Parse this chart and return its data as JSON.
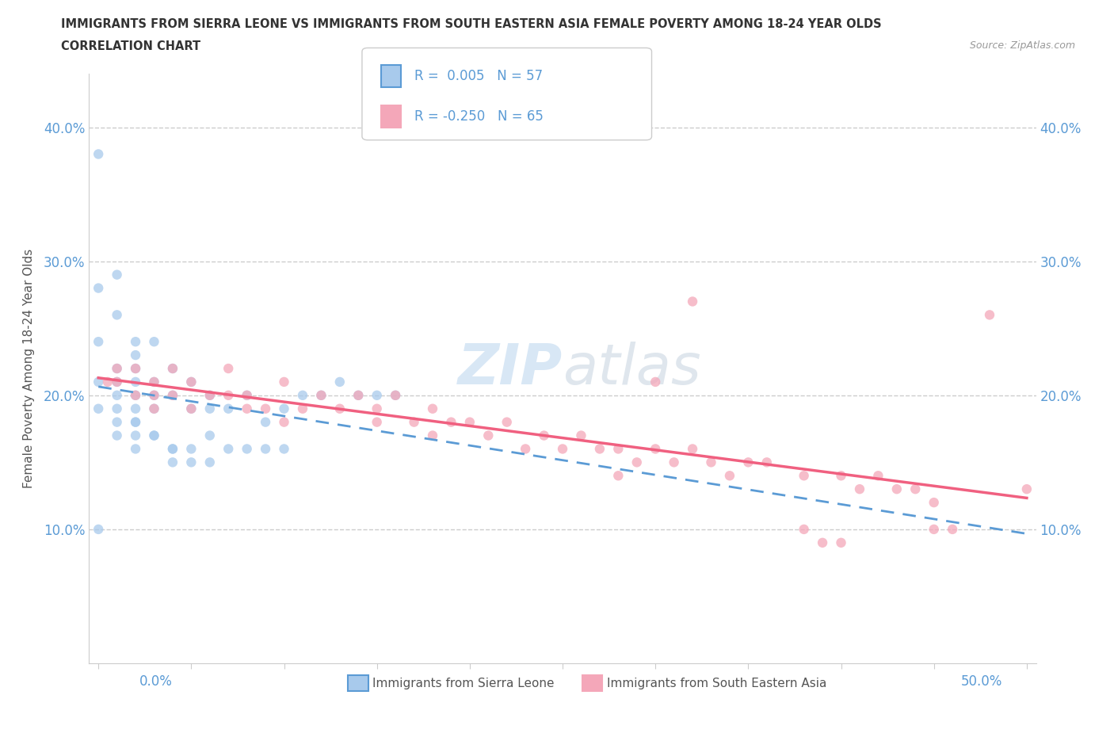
{
  "title_line1": "IMMIGRANTS FROM SIERRA LEONE VS IMMIGRANTS FROM SOUTH EASTERN ASIA FEMALE POVERTY AMONG 18-24 YEAR OLDS",
  "title_line2": "CORRELATION CHART",
  "source_text": "Source: ZipAtlas.com",
  "ylabel": "Female Poverty Among 18-24 Year Olds",
  "xlim": [
    0.0,
    0.5
  ],
  "ylim": [
    0.0,
    0.44
  ],
  "color_blue": "#A8CAEC",
  "color_pink": "#F4A7B9",
  "color_blue_line": "#5B9BD5",
  "color_pink_line": "#F06080",
  "watermark_color": "#D0E4F5",
  "sl_x": [
    0.0,
    0.0,
    0.0,
    0.0,
    0.0,
    0.0,
    0.01,
    0.01,
    0.01,
    0.01,
    0.01,
    0.01,
    0.02,
    0.02,
    0.02,
    0.02,
    0.02,
    0.02,
    0.02,
    0.02,
    0.03,
    0.03,
    0.03,
    0.03,
    0.04,
    0.04,
    0.04,
    0.05,
    0.05,
    0.05,
    0.06,
    0.06,
    0.06,
    0.07,
    0.07,
    0.08,
    0.08,
    0.09,
    0.09,
    0.1,
    0.1,
    0.11,
    0.12,
    0.13,
    0.14,
    0.15,
    0.16,
    0.01,
    0.01,
    0.02,
    0.02,
    0.03,
    0.03,
    0.04,
    0.04,
    0.05,
    0.06
  ],
  "sl_y": [
    0.19,
    0.21,
    0.24,
    0.28,
    0.1,
    0.38,
    0.19,
    0.2,
    0.21,
    0.22,
    0.26,
    0.29,
    0.19,
    0.2,
    0.21,
    0.22,
    0.23,
    0.18,
    0.24,
    0.16,
    0.19,
    0.2,
    0.21,
    0.24,
    0.2,
    0.22,
    0.16,
    0.19,
    0.21,
    0.16,
    0.19,
    0.2,
    0.17,
    0.19,
    0.16,
    0.2,
    0.16,
    0.18,
    0.16,
    0.19,
    0.16,
    0.2,
    0.2,
    0.21,
    0.2,
    0.2,
    0.2,
    0.17,
    0.18,
    0.17,
    0.18,
    0.17,
    0.17,
    0.15,
    0.16,
    0.15,
    0.15
  ],
  "sea_x": [
    0.005,
    0.01,
    0.01,
    0.02,
    0.02,
    0.03,
    0.03,
    0.03,
    0.04,
    0.04,
    0.05,
    0.05,
    0.06,
    0.07,
    0.07,
    0.08,
    0.08,
    0.09,
    0.1,
    0.1,
    0.11,
    0.12,
    0.13,
    0.14,
    0.15,
    0.15,
    0.16,
    0.17,
    0.18,
    0.18,
    0.19,
    0.2,
    0.21,
    0.22,
    0.23,
    0.24,
    0.25,
    0.26,
    0.27,
    0.28,
    0.29,
    0.3,
    0.3,
    0.31,
    0.32,
    0.33,
    0.34,
    0.35,
    0.36,
    0.38,
    0.4,
    0.41,
    0.42,
    0.43,
    0.44,
    0.45,
    0.45,
    0.46,
    0.38,
    0.39,
    0.4,
    0.28,
    0.32,
    0.48,
    0.5
  ],
  "sea_y": [
    0.21,
    0.22,
    0.21,
    0.22,
    0.2,
    0.21,
    0.2,
    0.19,
    0.22,
    0.2,
    0.21,
    0.19,
    0.2,
    0.22,
    0.2,
    0.19,
    0.2,
    0.19,
    0.21,
    0.18,
    0.19,
    0.2,
    0.19,
    0.2,
    0.19,
    0.18,
    0.2,
    0.18,
    0.19,
    0.17,
    0.18,
    0.18,
    0.17,
    0.18,
    0.16,
    0.17,
    0.16,
    0.17,
    0.16,
    0.16,
    0.15,
    0.16,
    0.21,
    0.15,
    0.16,
    0.15,
    0.14,
    0.15,
    0.15,
    0.14,
    0.14,
    0.13,
    0.14,
    0.13,
    0.13,
    0.12,
    0.1,
    0.1,
    0.1,
    0.09,
    0.09,
    0.14,
    0.27,
    0.26,
    0.13
  ]
}
